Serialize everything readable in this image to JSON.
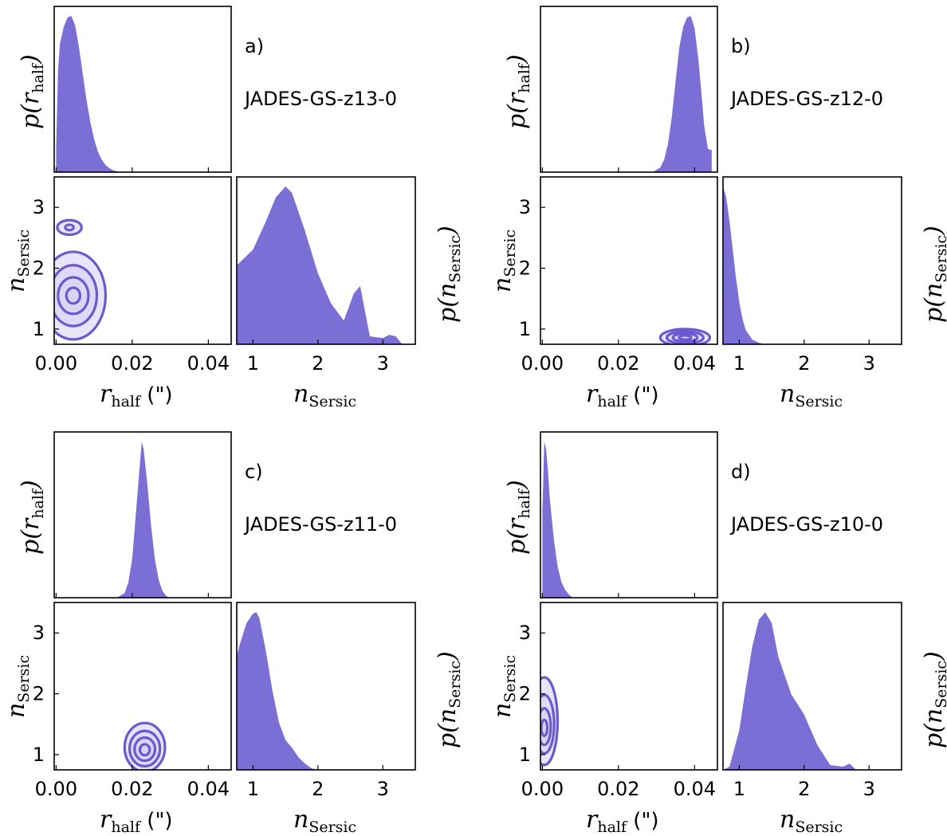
{
  "style": {
    "fill_color": "#7b6fd6",
    "contour_color": "#6a5acd",
    "contour_fill": "#d8d2f5",
    "axis_color": "#000000"
  },
  "axis_labels": {
    "r_main": "r",
    "r_sub": "half",
    "r_unit": " (\")",
    "n_main": "n",
    "n_sub": "Sersic",
    "p_r_open": "p(",
    "p_r_main": "r",
    "p_r_sub": "half",
    "p_r_close": ")",
    "p_n_open": "p(",
    "p_n_main": "n",
    "p_n_sub": "Sersic",
    "p_n_close": ")"
  },
  "chart_data": [
    {
      "type": "corner",
      "panel_label": "a)",
      "object_name": "JADES-GS-z13-0",
      "x_param": "r_half",
      "y_param": "n_Sersic",
      "r_range": [
        -0.0005,
        0.046
      ],
      "r_ticks": [
        0.0,
        0.02,
        0.04
      ],
      "r_tick_labels": [
        "0.00",
        "0.02",
        "0.04"
      ],
      "n_range": [
        0.75,
        3.5
      ],
      "n_ticks": [
        1,
        2,
        3
      ],
      "n_tick_labels": [
        "1",
        "2",
        "3"
      ],
      "p_r": {
        "x": [
          0.0,
          0.0005,
          0.001,
          0.002,
          0.003,
          0.004,
          0.005,
          0.006,
          0.007,
          0.008,
          0.009,
          0.01,
          0.011,
          0.012,
          0.013,
          0.014,
          0.015,
          0.016,
          0.017
        ],
        "y": [
          0.15,
          0.65,
          0.82,
          0.93,
          0.99,
          1.0,
          0.94,
          0.8,
          0.63,
          0.46,
          0.32,
          0.21,
          0.13,
          0.08,
          0.045,
          0.025,
          0.012,
          0.005,
          0.0
        ]
      },
      "p_n": {
        "x": [
          0.75,
          0.8,
          1.0,
          1.2,
          1.35,
          1.5,
          1.6,
          1.8,
          2.0,
          2.2,
          2.4,
          2.55,
          2.65,
          2.8,
          3.0,
          3.1,
          3.2,
          3.3
        ],
        "y": [
          0.5,
          0.52,
          0.6,
          0.78,
          0.93,
          1.0,
          0.96,
          0.72,
          0.45,
          0.26,
          0.15,
          0.32,
          0.37,
          0.05,
          0.04,
          0.06,
          0.05,
          0.0
        ]
      },
      "contours": [
        {
          "cx": 0.0045,
          "cy": 1.55,
          "rx": 0.0085,
          "ry": 0.72
        },
        {
          "cx": 0.0045,
          "cy": 1.55,
          "rx": 0.0062,
          "ry": 0.5
        },
        {
          "cx": 0.0045,
          "cy": 1.55,
          "rx": 0.004,
          "ry": 0.3
        },
        {
          "cx": 0.0045,
          "cy": 1.55,
          "rx": 0.0018,
          "ry": 0.13
        },
        {
          "cx": 0.0035,
          "cy": 2.67,
          "rx": 0.0032,
          "ry": 0.12
        },
        {
          "cx": 0.0035,
          "cy": 2.67,
          "rx": 0.0011,
          "ry": 0.045
        }
      ]
    },
    {
      "type": "corner",
      "panel_label": "b)",
      "object_name": "JADES-GS-z12-0",
      "x_param": "r_half",
      "y_param": "n_Sersic",
      "r_range": [
        -0.0005,
        0.046
      ],
      "r_ticks": [
        0.0,
        0.02,
        0.04
      ],
      "r_tick_labels": [
        "0.00",
        "0.02",
        "0.04"
      ],
      "n_range": [
        0.75,
        3.5
      ],
      "n_ticks": [
        1,
        2,
        3
      ],
      "n_tick_labels": [
        "1",
        "2",
        "3"
      ],
      "p_r": {
        "x": [
          0.029,
          0.031,
          0.032,
          0.033,
          0.034,
          0.035,
          0.036,
          0.037,
          0.038,
          0.039,
          0.04,
          0.041,
          0.042,
          0.0425,
          0.0435,
          0.0445
        ],
        "y": [
          0.0,
          0.03,
          0.08,
          0.18,
          0.35,
          0.58,
          0.8,
          0.93,
          0.99,
          1.0,
          0.92,
          0.72,
          0.45,
          0.3,
          0.15,
          0.14
        ]
      },
      "p_n": {
        "x": [
          0.75,
          0.8,
          0.85,
          0.9,
          0.95,
          1.0,
          1.05,
          1.1,
          1.2,
          1.3,
          1.4
        ],
        "y": [
          1.0,
          0.93,
          0.78,
          0.6,
          0.42,
          0.27,
          0.16,
          0.09,
          0.03,
          0.01,
          0.0
        ]
      },
      "contours": [
        {
          "cx": 0.0375,
          "cy": 0.86,
          "rx": 0.0065,
          "ry": 0.14
        },
        {
          "cx": 0.0375,
          "cy": 0.86,
          "rx": 0.0048,
          "ry": 0.1
        },
        {
          "cx": 0.0375,
          "cy": 0.86,
          "rx": 0.0032,
          "ry": 0.066
        },
        {
          "cx": 0.0375,
          "cy": 0.86,
          "rx": 0.0016,
          "ry": 0.034
        }
      ]
    },
    {
      "type": "corner",
      "panel_label": "c)",
      "object_name": "JADES-GS-z11-0",
      "x_param": "r_half",
      "y_param": "n_Sersic",
      "r_range": [
        -0.0005,
        0.046
      ],
      "r_ticks": [
        0.0,
        0.02,
        0.04
      ],
      "r_tick_labels": [
        "0.00",
        "0.02",
        "0.04"
      ],
      "n_range": [
        0.75,
        3.5
      ],
      "n_ticks": [
        1,
        2,
        3
      ],
      "n_tick_labels": [
        "1",
        "2",
        "3"
      ],
      "p_r": {
        "x": [
          0.016,
          0.018,
          0.019,
          0.02,
          0.021,
          0.022,
          0.0225,
          0.023,
          0.024,
          0.025,
          0.026,
          0.027,
          0.028,
          0.029,
          0.03
        ],
        "y": [
          0.0,
          0.03,
          0.1,
          0.25,
          0.55,
          0.85,
          1.0,
          0.95,
          0.72,
          0.45,
          0.24,
          0.11,
          0.04,
          0.01,
          0.0
        ]
      },
      "p_n": {
        "x": [
          0.75,
          0.8,
          0.9,
          1.0,
          1.05,
          1.1,
          1.2,
          1.3,
          1.4,
          1.5,
          1.6,
          1.7,
          1.8,
          1.9,
          2.0
        ],
        "y": [
          0.72,
          0.8,
          0.93,
          0.99,
          1.0,
          0.96,
          0.75,
          0.5,
          0.3,
          0.19,
          0.14,
          0.08,
          0.04,
          0.01,
          0.0
        ]
      },
      "contours": [
        {
          "cx": 0.0233,
          "cy": 1.12,
          "rx": 0.0053,
          "ry": 0.4
        },
        {
          "cx": 0.0233,
          "cy": 1.1,
          "rx": 0.004,
          "ry": 0.29
        },
        {
          "cx": 0.0233,
          "cy": 1.09,
          "rx": 0.0027,
          "ry": 0.19
        },
        {
          "cx": 0.0233,
          "cy": 1.08,
          "rx": 0.0013,
          "ry": 0.09
        }
      ]
    },
    {
      "type": "corner",
      "panel_label": "d)",
      "object_name": "JADES-GS-z10-0",
      "x_param": "r_half",
      "y_param": "n_Sersic",
      "r_range": [
        -0.0005,
        0.046
      ],
      "r_ticks": [
        0.0,
        0.02,
        0.04
      ],
      "r_tick_labels": [
        "0.00",
        "0.02",
        "0.04"
      ],
      "n_range": [
        0.75,
        3.5
      ],
      "n_ticks": [
        1,
        2,
        3
      ],
      "n_tick_labels": [
        "1",
        "2",
        "3"
      ],
      "p_r": {
        "x": [
          0.0,
          0.0005,
          0.001,
          0.0015,
          0.002,
          0.003,
          0.004,
          0.005,
          0.006,
          0.007,
          0.008
        ],
        "y": [
          0.55,
          1.0,
          0.95,
          0.8,
          0.62,
          0.38,
          0.2,
          0.1,
          0.05,
          0.02,
          0.0
        ]
      },
      "p_n": {
        "x": [
          0.75,
          0.85,
          1.0,
          1.1,
          1.2,
          1.3,
          1.4,
          1.5,
          1.6,
          1.8,
          2.0,
          2.2,
          2.4,
          2.6,
          2.7,
          2.8
        ],
        "y": [
          0.0,
          0.02,
          0.25,
          0.52,
          0.78,
          0.95,
          1.0,
          0.93,
          0.72,
          0.48,
          0.35,
          0.16,
          0.03,
          0.02,
          0.04,
          0.0
        ]
      },
      "contours": [
        {
          "cx": 0.0005,
          "cy": 1.55,
          "rx": 0.0035,
          "ry": 0.72
        },
        {
          "cx": 0.0005,
          "cy": 1.5,
          "rx": 0.0026,
          "ry": 0.48
        },
        {
          "cx": 0.0005,
          "cy": 1.46,
          "rx": 0.0017,
          "ry": 0.3
        },
        {
          "cx": 0.0005,
          "cy": 1.44,
          "rx": 0.0008,
          "ry": 0.13
        }
      ]
    }
  ]
}
